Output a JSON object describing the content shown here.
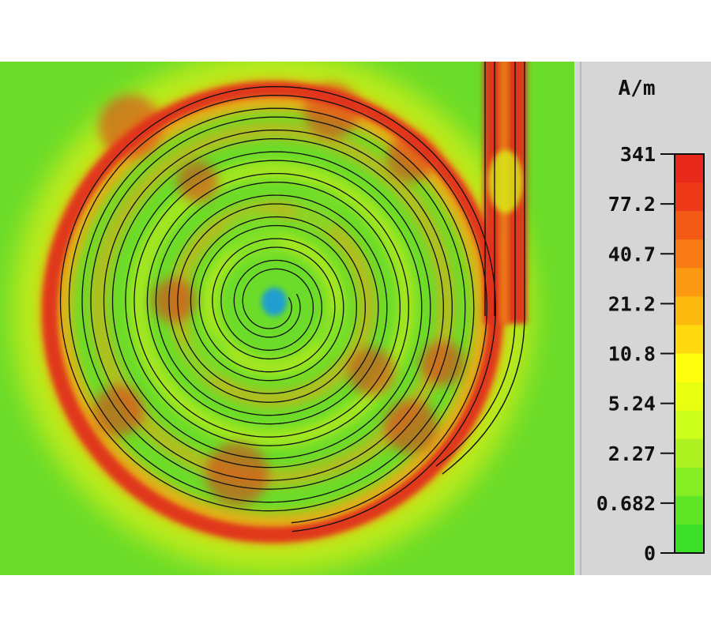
{
  "legend": {
    "unit": "A/m",
    "ticks": [
      "341",
      "77.2",
      "40.7",
      "21.2",
      "10.8",
      "5.24",
      "2.27",
      "0.682",
      "0"
    ],
    "colors": [
      "#e8281a",
      "#ee3a18",
      "#f25a16",
      "#f77a14",
      "#fb9a12",
      "#fdbb10",
      "#ffd80e",
      "#ffff10",
      "#e9ff12",
      "#ccff1c",
      "#aef222",
      "#88ee24",
      "#5fe626",
      "#3de028"
    ]
  },
  "colors": {
    "background_field": "#6bdc2a",
    "hot": "#e0301a",
    "warm": "#f2a414",
    "mid": "#d8f016",
    "center": "#1a9cd8",
    "panel": "#d6d6d6",
    "line": "#101010"
  }
}
